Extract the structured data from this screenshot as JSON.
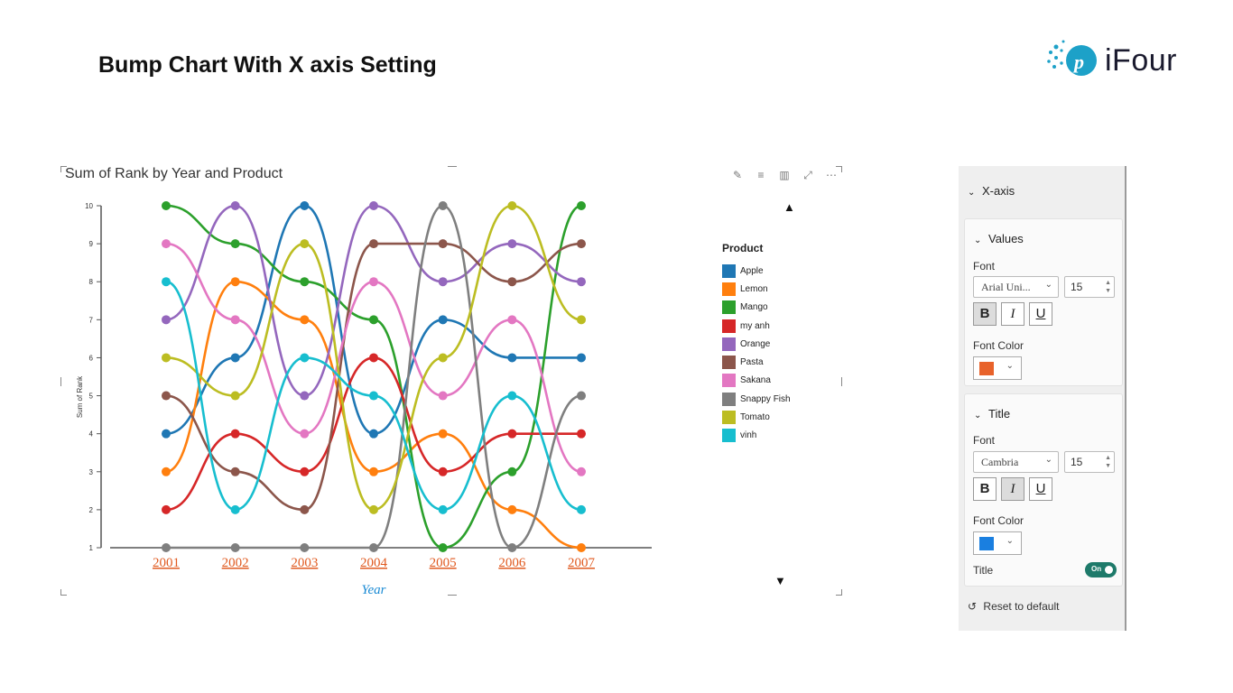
{
  "page": {
    "title": "Bump Chart With X axis Setting"
  },
  "logo": {
    "text": "iFour"
  },
  "visual": {
    "title": "Sum of Rank by Year and Product",
    "toolbar": [
      "pin-icon",
      "filter-icon",
      "visual-format-icon",
      "focus-mode-icon",
      "more-options-icon"
    ]
  },
  "chart_data": {
    "type": "line",
    "title": "Sum of Rank by Year and Product",
    "xlabel": "Year",
    "ylabel": "Sum of Rank",
    "x": [
      "2001",
      "2002",
      "2003",
      "2004",
      "2005",
      "2006",
      "2007"
    ],
    "ylim": [
      1,
      10
    ],
    "yticks": [
      1,
      2,
      3,
      4,
      5,
      6,
      7,
      8,
      9,
      10
    ],
    "grid": false,
    "legend_title": "Product",
    "legend_position": "right",
    "series": [
      {
        "name": "Apple",
        "color": "#1f77b4",
        "values": [
          4,
          6,
          10,
          4,
          7,
          6,
          6
        ]
      },
      {
        "name": "Lemon",
        "color": "#ff7f0e",
        "values": [
          3,
          8,
          7,
          3,
          4,
          2,
          1
        ]
      },
      {
        "name": "Mango",
        "color": "#2ca02c",
        "values": [
          10,
          9,
          8,
          7,
          1,
          3,
          10
        ]
      },
      {
        "name": "my anh",
        "color": "#d62728",
        "values": [
          2,
          4,
          3,
          6,
          3,
          4,
          4
        ]
      },
      {
        "name": "Orange",
        "color": "#9467bd",
        "values": [
          7,
          10,
          5,
          10,
          8,
          9,
          8
        ]
      },
      {
        "name": "Pasta",
        "color": "#8c564b",
        "values": [
          5,
          3,
          2,
          9,
          9,
          8,
          9
        ]
      },
      {
        "name": "Sakana",
        "color": "#e377c2",
        "values": [
          9,
          7,
          4,
          8,
          5,
          7,
          3
        ]
      },
      {
        "name": "Snappy Fish",
        "color": "#7f7f7f",
        "values": [
          1,
          1,
          1,
          1,
          10,
          1,
          5
        ]
      },
      {
        "name": "Tomato",
        "color": "#bcbd22",
        "values": [
          6,
          5,
          9,
          2,
          6,
          10,
          7
        ]
      },
      {
        "name": "vinh",
        "color": "#17becf",
        "values": [
          8,
          2,
          6,
          5,
          2,
          5,
          2
        ]
      }
    ],
    "x_tick_color": "#e05a20",
    "x_title_color": "#1a8ad4"
  },
  "format_pane": {
    "section": "X-axis",
    "values_card": {
      "header": "Values",
      "font_label": "Font",
      "font_family": "Arial Uni...",
      "font_size": "15",
      "bold": "B",
      "italic": "I",
      "underline": "U",
      "font_color_label": "Font Color",
      "font_color": "#e8622a"
    },
    "title_card": {
      "header": "Title",
      "font_label": "Font",
      "font_family": "Cambria",
      "font_size": "15",
      "bold": "B",
      "italic": "I",
      "underline": "U",
      "font_color_label": "Font Color",
      "font_color": "#1a7fe0",
      "title_label": "Title",
      "title_toggle": "On"
    },
    "reset_label": "Reset to default"
  }
}
